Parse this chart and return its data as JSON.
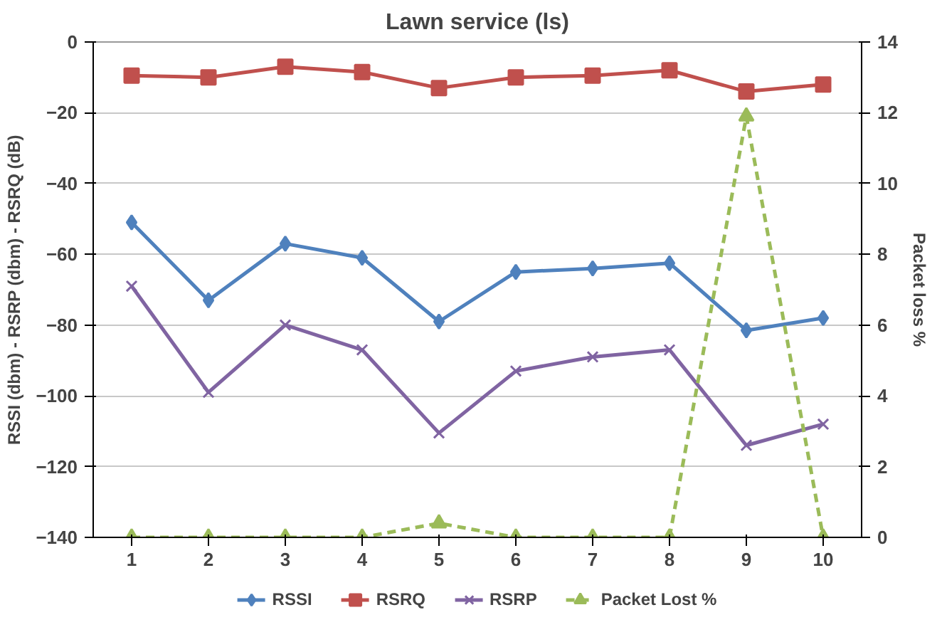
{
  "chart_data": {
    "type": "line",
    "title": "Lawn service (ls)",
    "ylabel": "RSSI (dbm) - RSRP (dbm) - RSRQ (dB)",
    "y2label": "Packet loss %",
    "categories": [
      "1",
      "2",
      "3",
      "4",
      "5",
      "6",
      "7",
      "8",
      "9",
      "10"
    ],
    "series": [
      {
        "name": "RSSI",
        "color": "#4f81bd",
        "marker": "diamond",
        "values": [
          -51,
          -73,
          -57,
          -61,
          -79,
          -65,
          -64,
          -62.5,
          -81.5,
          -78
        ]
      },
      {
        "name": "RSRQ",
        "color": "#c0504d",
        "marker": "square",
        "values": [
          -9.5,
          -10,
          -7,
          -8.5,
          -13,
          -10,
          -9.5,
          -8,
          -14,
          -12
        ]
      },
      {
        "name": "RSRP",
        "color": "#8064a2",
        "marker": "cross",
        "values": [
          -69,
          -99,
          -80,
          -87,
          -110.5,
          -93,
          -89,
          -87,
          -114,
          -108
        ]
      },
      {
        "name": "Packet Lost %",
        "color": "#9bbb59",
        "marker": "triangle",
        "line_style": "dashed",
        "axis": "y2",
        "values": [
          0,
          0,
          0,
          0,
          0.4,
          0,
          0,
          0,
          11.9,
          0
        ]
      }
    ],
    "ylim": [
      -140,
      0
    ],
    "yticks": [
      -140,
      -120,
      -100,
      -80,
      -60,
      -40,
      -20,
      0
    ],
    "y2lim": [
      0,
      14
    ],
    "y2ticks": [
      0,
      2,
      4,
      6,
      8,
      10,
      12,
      14
    ],
    "grid": "y",
    "legend": "bottom"
  }
}
